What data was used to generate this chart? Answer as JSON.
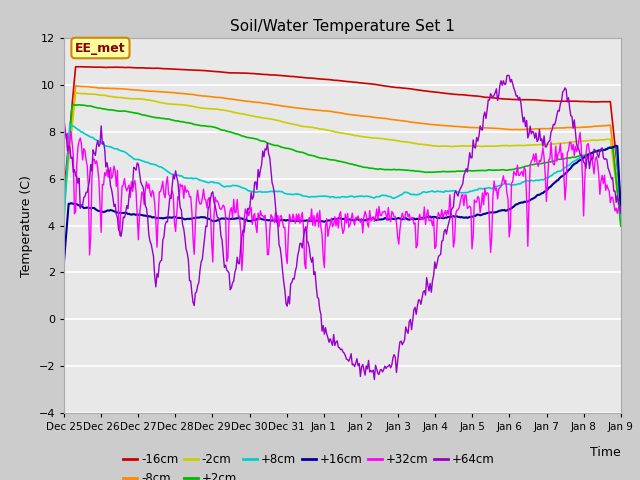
{
  "title": "Soil/Water Temperature Set 1",
  "xlabel": "Time",
  "ylabel": "Temperature (C)",
  "ylim": [
    -4,
    12
  ],
  "yticks": [
    -4,
    -2,
    0,
    2,
    4,
    6,
    8,
    10,
    12
  ],
  "xlabels": [
    "Dec 25",
    "Dec 26",
    "Dec 27",
    "Dec 28",
    "Dec 29",
    "Dec 30",
    "Dec 31",
    "Jan 1",
    "Jan 2",
    "Jan 3",
    "Jan 4",
    "Jan 5",
    "Jan 6",
    "Jan 7",
    "Jan 8",
    "Jan 9"
  ],
  "num_points": 480,
  "colors": {
    "-16cm": "#cc0000",
    "-8cm": "#ff8800",
    "-2cm": "#cccc00",
    "+2cm": "#00bb00",
    "+8cm": "#00cccc",
    "+16cm": "#000099",
    "+32cm": "#ff00ff",
    "+64cm": "#9900cc"
  },
  "linewidths": {
    "-16cm": 1.2,
    "-8cm": 1.2,
    "-2cm": 1.2,
    "+2cm": 1.2,
    "+8cm": 1.2,
    "+16cm": 1.5,
    "+32cm": 1.0,
    "+64cm": 1.0
  },
  "annotation_text": "EE_met",
  "fig_bg": "#cccccc",
  "plot_bg": "#e8e8e8"
}
